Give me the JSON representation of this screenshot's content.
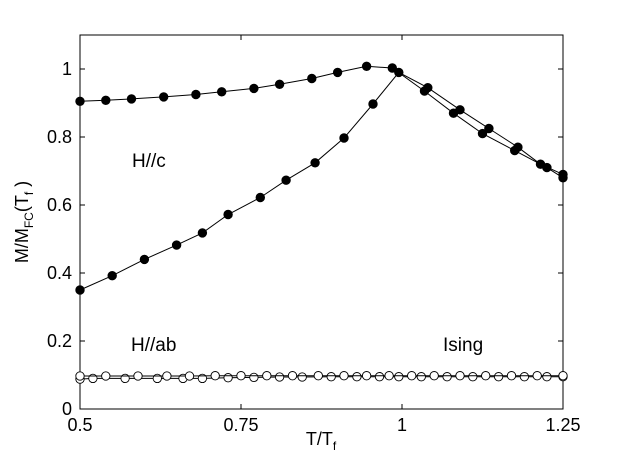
{
  "chart_data": {
    "type": "line",
    "xlabel": "T/T_f",
    "ylabel": "M/M_FC(T_f)",
    "xlim": [
      0.5,
      1.25
    ],
    "ylim": [
      0,
      1.1
    ],
    "xticks": [
      0.5,
      0.75,
      1,
      1.25
    ],
    "xtick_labels": [
      "0.5",
      "0.75",
      "1",
      "1.25"
    ],
    "yticks": [
      0,
      0.2,
      0.4,
      0.6,
      0.8,
      1
    ],
    "ytick_labels": [
      "0",
      "0.2",
      "0.4",
      "0.6",
      "0.8",
      "1"
    ],
    "grid": false,
    "annotations": [
      "H//c",
      "H//ab",
      "Ising"
    ],
    "series": [
      {
        "marker": "filled-circle",
        "color": "#000000",
        "x": [
          0.5,
          0.54,
          0.58,
          0.63,
          0.68,
          0.72,
          0.77,
          0.81,
          0.86,
          0.9,
          0.945,
          0.985,
          1.035,
          1.08,
          1.125,
          1.175,
          1.225,
          1.25
        ],
        "y": [
          0.905,
          0.908,
          0.912,
          0.918,
          0.925,
          0.933,
          0.943,
          0.955,
          0.972,
          0.99,
          1.008,
          1.003,
          0.935,
          0.87,
          0.81,
          0.76,
          0.71,
          0.68
        ]
      },
      {
        "marker": "filled-circle",
        "color": "#000000",
        "x": [
          0.5,
          0.55,
          0.6,
          0.65,
          0.69,
          0.73,
          0.78,
          0.82,
          0.865,
          0.91,
          0.955,
          0.995,
          1.04,
          1.09,
          1.135,
          1.18,
          1.215,
          1.25
        ],
        "y": [
          0.35,
          0.392,
          0.44,
          0.482,
          0.518,
          0.572,
          0.622,
          0.673,
          0.724,
          0.797,
          0.897,
          0.99,
          0.945,
          0.88,
          0.825,
          0.77,
          0.72,
          0.69
        ]
      },
      {
        "marker": "open-circle",
        "color": "#000000",
        "x": [
          0.5,
          0.52,
          0.57,
          0.62,
          0.66,
          0.69,
          0.73,
          0.77,
          0.81,
          0.845,
          0.89,
          0.93,
          0.965,
          0.995,
          1.03,
          1.07,
          1.11,
          1.15,
          1.19,
          1.225,
          1.25
        ],
        "y": [
          0.088,
          0.09,
          0.09,
          0.09,
          0.09,
          0.09,
          0.092,
          0.093,
          0.094,
          0.094,
          0.095,
          0.095,
          0.095,
          0.095,
          0.095,
          0.095,
          0.095,
          0.095,
          0.095,
          0.095,
          0.095
        ]
      },
      {
        "marker": "open-circle",
        "color": "#000000",
        "x": [
          0.5,
          0.54,
          0.59,
          0.635,
          0.67,
          0.71,
          0.75,
          0.79,
          0.83,
          0.87,
          0.91,
          0.945,
          0.98,
          1.015,
          1.05,
          1.09,
          1.13,
          1.17,
          1.21,
          1.25
        ],
        "y": [
          0.097,
          0.097,
          0.097,
          0.097,
          0.097,
          0.098,
          0.098,
          0.098,
          0.098,
          0.098,
          0.098,
          0.098,
          0.098,
          0.098,
          0.098,
          0.098,
          0.098,
          0.098,
          0.098,
          0.098
        ]
      }
    ]
  }
}
